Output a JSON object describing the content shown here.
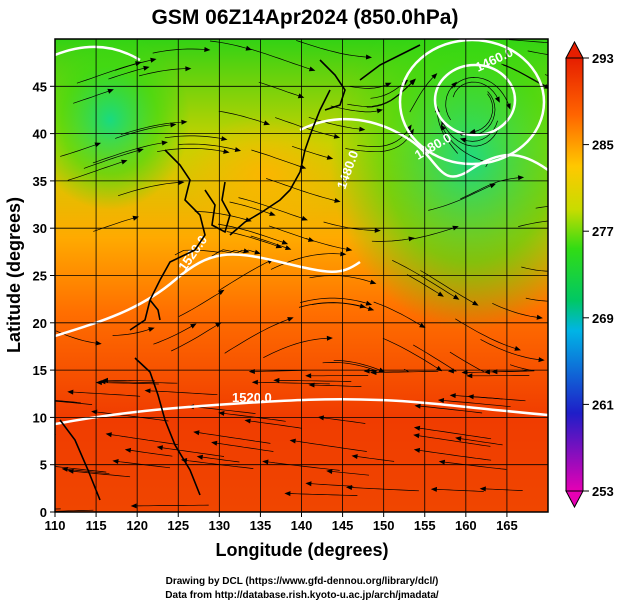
{
  "title": "GSM 06Z14Apr2024 (850.0hPa)",
  "xlabel": "Longitude (degrees)",
  "ylabel": "Latitude  (degrees)",
  "credits": [
    "Drawing by DCL (https://www.gfd-dennou.org/library/dcl/)",
    "Data from http://database.rish.kyoto-u.ac.jp/arch/jmadata/"
  ],
  "chart_data": {
    "type": "heatmap",
    "title": "GSM 06Z14Apr2024 (850.0hPa)",
    "xlabel": "Longitude (degrees)",
    "ylabel": "Latitude  (degrees)",
    "xlim": [
      110,
      170
    ],
    "ylim": [
      0,
      50
    ],
    "xticks": [
      110,
      115,
      120,
      125,
      130,
      135,
      140,
      145,
      150,
      155,
      160,
      165
    ],
    "yticks": [
      0,
      5,
      10,
      15,
      20,
      25,
      30,
      35,
      40,
      45
    ],
    "grid": true,
    "grid_spacing_deg": 5,
    "colorbar": {
      "min": 253,
      "max": 293,
      "ticks": [
        253,
        261,
        269,
        277,
        285,
        293
      ],
      "colors": [
        "#e600b4",
        "#1e1ec8",
        "#00b4e6",
        "#00c864",
        "#32dc14",
        "#c8dc00",
        "#ffc800",
        "#ff6400",
        "#e61e00"
      ]
    },
    "contour_labels": [
      {
        "text": "1520.0",
        "lon": 139,
        "lat": 12
      },
      {
        "text": "1520.0",
        "lon": 133,
        "lat": 27
      },
      {
        "text": "1480.0",
        "lon": 154,
        "lat": 40
      },
      {
        "text": "1480.0",
        "lon": 140,
        "lat": 38
      },
      {
        "text": "1460.0",
        "lon": 166,
        "lat": 48
      }
    ],
    "features": [
      "temperature shading",
      "geopotential height contours",
      "streamlines",
      "coastlines"
    ]
  }
}
